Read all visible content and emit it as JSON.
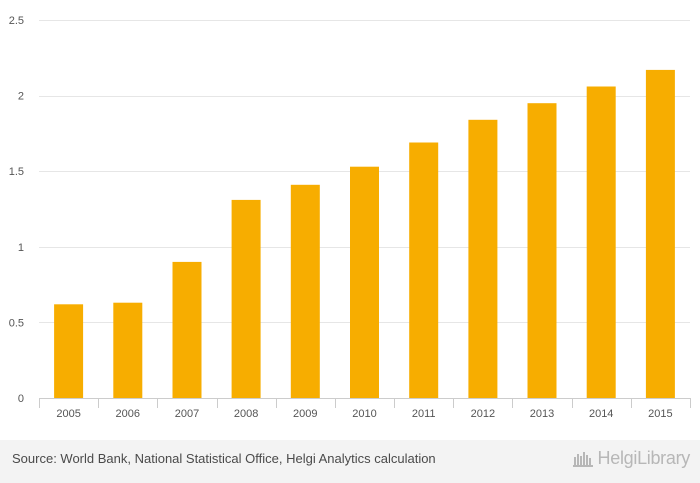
{
  "chart_data": {
    "type": "bar",
    "title": "",
    "xlabel": "",
    "ylabel": "",
    "categories": [
      "2005",
      "2006",
      "2007",
      "2008",
      "2009",
      "2010",
      "2011",
      "2012",
      "2013",
      "2014",
      "2015"
    ],
    "values": [
      0.62,
      0.63,
      0.9,
      1.31,
      1.41,
      1.53,
      1.69,
      1.84,
      1.95,
      2.06,
      2.17
    ],
    "ylim": [
      0,
      2.5
    ],
    "yticks": [
      0,
      0.5,
      1,
      1.5,
      2,
      2.5
    ],
    "ytick_labels": [
      "0",
      "0.5",
      "1",
      "1.5",
      "2",
      "2.5"
    ],
    "grid": true,
    "bar_color": "#f7ad00",
    "grid_color": "#e6e6e6"
  },
  "footer": {
    "source": "Source: World Bank, National Statistical Office, Helgi Analytics calculation",
    "logo_text": "HelgiLibrary",
    "logo_icon": "helgi-library-logo-icon"
  }
}
